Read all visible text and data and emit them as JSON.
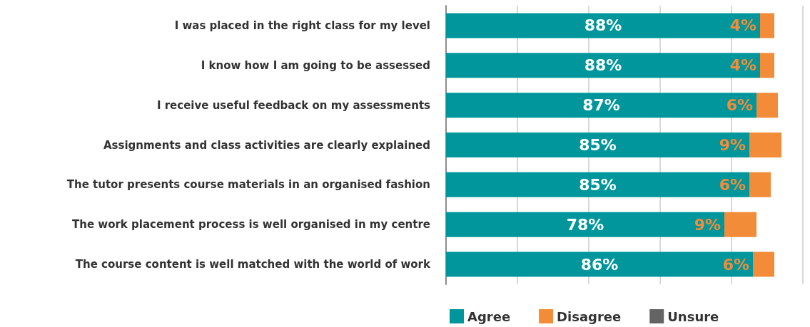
{
  "chart_data": {
    "type": "bar",
    "orientation": "horizontal",
    "stacked": true,
    "categories": [
      "I was placed in the right class for my level",
      "I know how I am going to be assessed",
      "I receive useful feedback on my assessments",
      "Assignments and class activities are clearly explained",
      "The tutor presents course materials in an organised fashion",
      "The work placement process is well organised in my centre",
      "The course content is well matched with the world of work"
    ],
    "series": [
      {
        "name": "Agree",
        "color": "#00969b",
        "values": [
          88,
          88,
          87,
          85,
          85,
          78,
          86
        ],
        "value_labels": [
          "88%",
          "88%",
          "87%",
          "85%",
          "85%",
          "78%",
          "86%"
        ]
      },
      {
        "name": "Disagree",
        "color": "#f28c38",
        "values": [
          4,
          4,
          6,
          9,
          6,
          9,
          6
        ],
        "value_labels": [
          "4%",
          "4%",
          "6%",
          "9%",
          "6%",
          "9%",
          "6%"
        ]
      },
      {
        "name": "Unsure",
        "color": "#646464",
        "values": [
          null,
          null,
          null,
          null,
          null,
          null,
          null
        ]
      }
    ],
    "xlim": [
      0,
      100
    ],
    "xticks": [
      {
        "value": 0,
        "label": null
      },
      {
        "value": 20,
        "label": null
      },
      {
        "value": 40,
        "label": null
      },
      {
        "value": 60,
        "label": null
      },
      {
        "value": 80,
        "label": null
      },
      {
        "value": 100,
        "label": null
      }
    ],
    "tick_labels": "y",
    "grid": "x",
    "legend": "bottom"
  }
}
